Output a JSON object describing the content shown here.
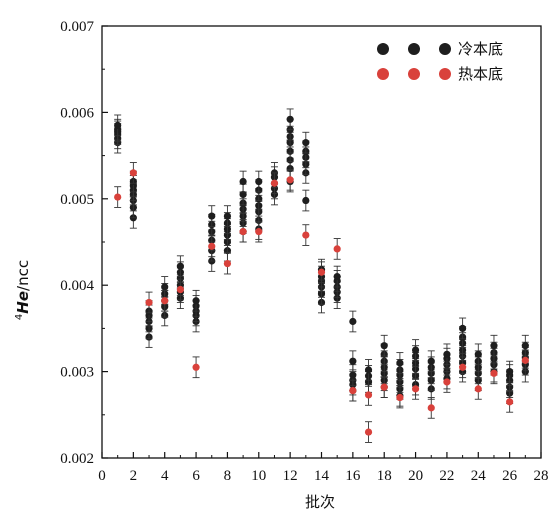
{
  "chart_data": {
    "type": "scatter",
    "title": "",
    "xlabel": "批次",
    "ylabel": "4He/ncc",
    "ylabel_sup": "4",
    "ylabel_italic": "He",
    "ylabel_rest": "/ncc",
    "xlim": [
      0,
      28
    ],
    "ylim": [
      0.002,
      0.007
    ],
    "x_ticks": [
      0,
      2,
      4,
      6,
      8,
      10,
      12,
      14,
      16,
      18,
      20,
      22,
      24,
      26,
      28
    ],
    "y_ticks": [
      0.002,
      0.003,
      0.004,
      0.005,
      0.006,
      0.007
    ],
    "y_tick_labels": [
      "0.002",
      "0.003",
      "0.004",
      "0.005",
      "0.006",
      "0.007"
    ],
    "legend_position": "top-right",
    "series": [
      {
        "name": "冷本底",
        "color": "#1e1e1e",
        "points": [
          [
            1,
            0.00565
          ],
          [
            1,
            0.0057
          ],
          [
            1,
            0.00575
          ],
          [
            1,
            0.00578
          ],
          [
            1,
            0.0058
          ],
          [
            1,
            0.00585
          ],
          [
            2,
            0.00478
          ],
          [
            2,
            0.0049
          ],
          [
            2,
            0.00498
          ],
          [
            2,
            0.00505
          ],
          [
            2,
            0.0051
          ],
          [
            2,
            0.00515
          ],
          [
            2,
            0.0052
          ],
          [
            3,
            0.0034
          ],
          [
            3,
            0.0035
          ],
          [
            3,
            0.00358
          ],
          [
            3,
            0.00365
          ],
          [
            3,
            0.0037
          ],
          [
            4,
            0.00365
          ],
          [
            4,
            0.00375
          ],
          [
            4,
            0.00382
          ],
          [
            4,
            0.0039
          ],
          [
            4,
            0.00398
          ],
          [
            5,
            0.00385
          ],
          [
            5,
            0.00392
          ],
          [
            5,
            0.004
          ],
          [
            5,
            0.00408
          ],
          [
            5,
            0.00415
          ],
          [
            5,
            0.00422
          ],
          [
            6,
            0.00358
          ],
          [
            6,
            0.00365
          ],
          [
            6,
            0.0037
          ],
          [
            6,
            0.00376
          ],
          [
            6,
            0.00382
          ],
          [
            7,
            0.00428
          ],
          [
            7,
            0.0044
          ],
          [
            7,
            0.00452
          ],
          [
            7,
            0.00462
          ],
          [
            7,
            0.0047
          ],
          [
            7,
            0.0048
          ],
          [
            8,
            0.0044
          ],
          [
            8,
            0.0045
          ],
          [
            8,
            0.00458
          ],
          [
            8,
            0.00465
          ],
          [
            8,
            0.00472
          ],
          [
            8,
            0.0048
          ],
          [
            9,
            0.00462
          ],
          [
            9,
            0.00472
          ],
          [
            9,
            0.0048
          ],
          [
            9,
            0.00488
          ],
          [
            9,
            0.00495
          ],
          [
            9,
            0.00505
          ],
          [
            9,
            0.0052
          ],
          [
            10,
            0.00465
          ],
          [
            10,
            0.00475
          ],
          [
            10,
            0.00485
          ],
          [
            10,
            0.00492
          ],
          [
            10,
            0.005
          ],
          [
            10,
            0.0051
          ],
          [
            10,
            0.0052
          ],
          [
            11,
            0.00505
          ],
          [
            11,
            0.00512
          ],
          [
            11,
            0.00518
          ],
          [
            11,
            0.00525
          ],
          [
            11,
            0.0053
          ],
          [
            12,
            0.0052
          ],
          [
            12,
            0.00535
          ],
          [
            12,
            0.00545
          ],
          [
            12,
            0.00555
          ],
          [
            12,
            0.00565
          ],
          [
            12,
            0.00572
          ],
          [
            12,
            0.0058
          ],
          [
            12,
            0.00592
          ],
          [
            13,
            0.00498
          ],
          [
            13,
            0.0053
          ],
          [
            13,
            0.0054
          ],
          [
            13,
            0.00548
          ],
          [
            13,
            0.00555
          ],
          [
            13,
            0.00565
          ],
          [
            14,
            0.0038
          ],
          [
            14,
            0.0039
          ],
          [
            14,
            0.00398
          ],
          [
            14,
            0.00405
          ],
          [
            14,
            0.0041
          ],
          [
            14,
            0.00418
          ],
          [
            15,
            0.00385
          ],
          [
            15,
            0.00392
          ],
          [
            15,
            0.00398
          ],
          [
            15,
            0.00405
          ],
          [
            15,
            0.0041
          ],
          [
            16,
            0.00278
          ],
          [
            16,
            0.00285
          ],
          [
            16,
            0.0029
          ],
          [
            16,
            0.00296
          ],
          [
            16,
            0.00312
          ],
          [
            16,
            0.00358
          ],
          [
            17,
            0.00288
          ],
          [
            17,
            0.00295
          ],
          [
            17,
            0.00302
          ],
          [
            18,
            0.00282
          ],
          [
            18,
            0.0029
          ],
          [
            18,
            0.00298
          ],
          [
            18,
            0.00305
          ],
          [
            18,
            0.00312
          ],
          [
            18,
            0.0032
          ],
          [
            18,
            0.0033
          ],
          [
            19,
            0.00272
          ],
          [
            19,
            0.0028
          ],
          [
            19,
            0.00288
          ],
          [
            19,
            0.00296
          ],
          [
            19,
            0.00302
          ],
          [
            19,
            0.0031
          ],
          [
            20,
            0.00285
          ],
          [
            20,
            0.00295
          ],
          [
            20,
            0.00303
          ],
          [
            20,
            0.0031
          ],
          [
            20,
            0.00318
          ],
          [
            20,
            0.00325
          ],
          [
            21,
            0.0028
          ],
          [
            21,
            0.0029
          ],
          [
            21,
            0.00298
          ],
          [
            21,
            0.00305
          ],
          [
            21,
            0.00312
          ],
          [
            22,
            0.00292
          ],
          [
            22,
            0.003
          ],
          [
            22,
            0.00308
          ],
          [
            22,
            0.00315
          ],
          [
            22,
            0.0032
          ],
          [
            23,
            0.003
          ],
          [
            23,
            0.0031
          ],
          [
            23,
            0.00318
          ],
          [
            23,
            0.00325
          ],
          [
            23,
            0.00333
          ],
          [
            23,
            0.0034
          ],
          [
            23,
            0.0035
          ],
          [
            24,
            0.0029
          ],
          [
            24,
            0.00298
          ],
          [
            24,
            0.00305
          ],
          [
            24,
            0.00312
          ],
          [
            24,
            0.0032
          ],
          [
            25,
            0.003
          ],
          [
            25,
            0.00308
          ],
          [
            25,
            0.00315
          ],
          [
            25,
            0.00322
          ],
          [
            25,
            0.0033
          ],
          [
            26,
            0.00275
          ],
          [
            26,
            0.00282
          ],
          [
            26,
            0.0029
          ],
          [
            26,
            0.00296
          ],
          [
            26,
            0.003
          ],
          [
            27,
            0.003
          ],
          [
            27,
            0.00308
          ],
          [
            27,
            0.00316
          ],
          [
            27,
            0.00322
          ],
          [
            27,
            0.0033
          ]
        ]
      },
      {
        "name": "热本底",
        "color": "#d9413b",
        "points": [
          [
            1,
            0.00502
          ],
          [
            2,
            0.0053
          ],
          [
            3,
            0.0038
          ],
          [
            4,
            0.00382
          ],
          [
            5,
            0.00395
          ],
          [
            6,
            0.00305
          ],
          [
            7,
            0.00445
          ],
          [
            8,
            0.00425
          ],
          [
            9,
            0.00462
          ],
          [
            10,
            0.00462
          ],
          [
            11,
            0.00518
          ],
          [
            12,
            0.00522
          ],
          [
            13,
            0.00458
          ],
          [
            14,
            0.00415
          ],
          [
            15,
            0.00442
          ],
          [
            16,
            0.00278
          ],
          [
            17,
            0.0023
          ],
          [
            17,
            0.00273
          ],
          [
            18,
            0.00282
          ],
          [
            19,
            0.0027
          ],
          [
            20,
            0.0028
          ],
          [
            21,
            0.00258
          ],
          [
            22,
            0.00288
          ],
          [
            23,
            0.00305
          ],
          [
            24,
            0.0028
          ],
          [
            25,
            0.00298
          ],
          [
            26,
            0.00265
          ],
          [
            27,
            0.00313
          ]
        ]
      }
    ]
  }
}
